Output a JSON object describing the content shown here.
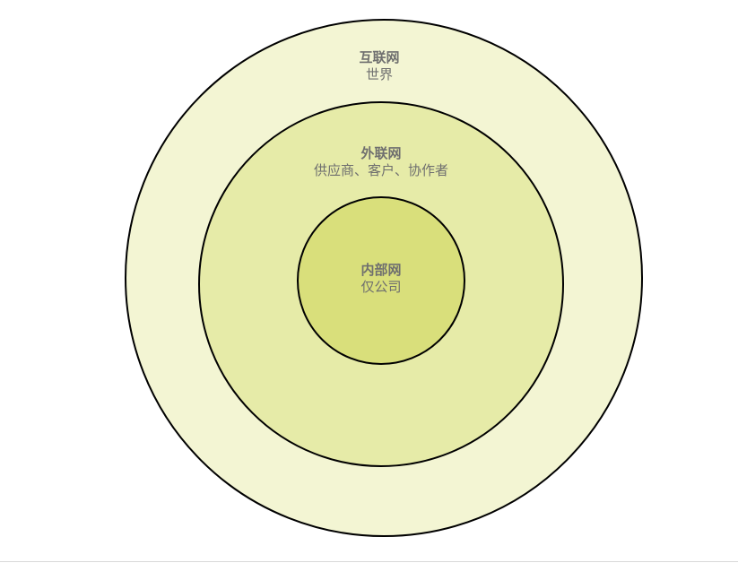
{
  "colors": {
    "outer_fill": "#f3f5d3",
    "middle_fill": "#e6eba8",
    "inner_fill": "#d9df7b",
    "stroke": "#000000",
    "text": "#6f6f6f"
  },
  "rings": {
    "internet": {
      "title": "互联网",
      "subtitle": "世界"
    },
    "extranet": {
      "title": "外联网",
      "subtitle": "供应商、客户、协作者"
    },
    "intranet": {
      "title": "内部网",
      "subtitle": "仅公司"
    }
  }
}
